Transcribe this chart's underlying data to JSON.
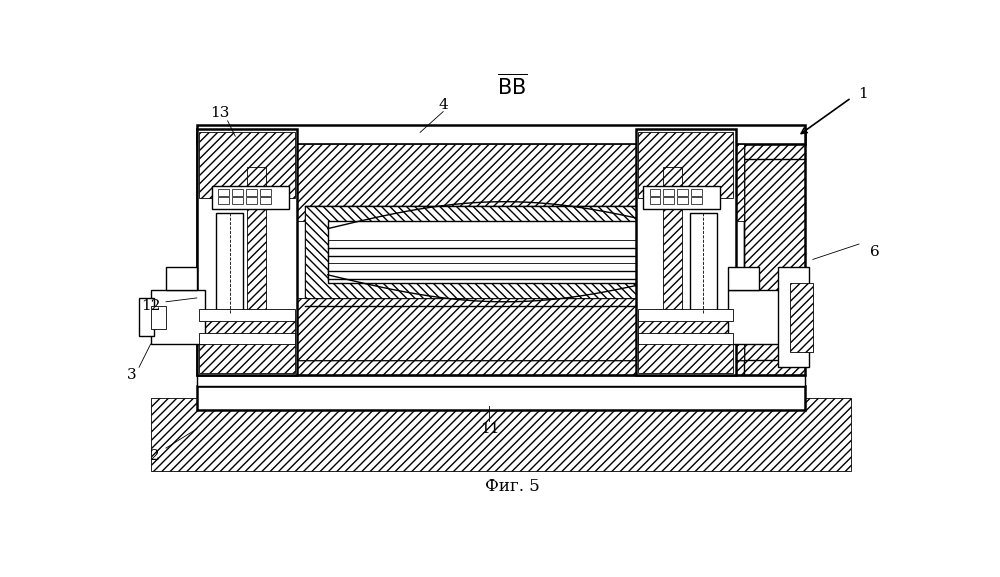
{
  "title": "Фиг. 5",
  "bg_color": "white",
  "line_color": "black",
  "fig_width": 10.0,
  "fig_height": 5.77,
  "labels": {
    "BB": "BB",
    "1": "1",
    "2": "2",
    "3": "3",
    "4": "4",
    "6": "6",
    "11": "11",
    "12": "12",
    "13": "13"
  }
}
